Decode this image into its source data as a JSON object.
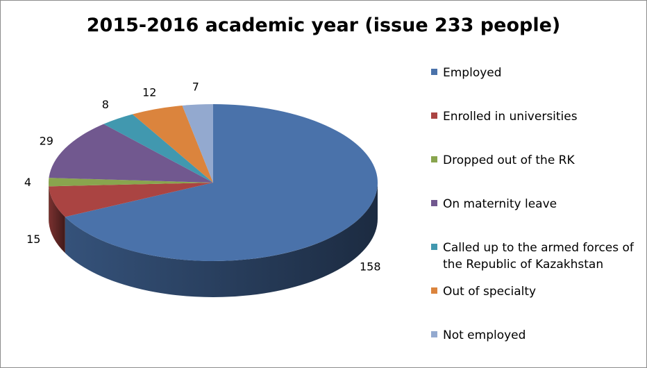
{
  "chart_data": {
    "type": "pie",
    "title": "2015-2016 academic year (issue 233 people)",
    "categories": [
      "Employed",
      "Enrolled in universities",
      "Dropped out of the RK",
      "On maternity leave",
      "Called up to the armed forces of the Republic of Kazakhstan",
      "Out of specialty",
      "Not employed"
    ],
    "values": [
      158,
      15,
      4,
      29,
      8,
      12,
      7
    ],
    "colors": [
      "#4a72aa",
      "#aa4442",
      "#89a54e",
      "#71588f",
      "#4198af",
      "#db843d",
      "#93a9cf"
    ],
    "legend_position": "right",
    "style": "3d"
  }
}
